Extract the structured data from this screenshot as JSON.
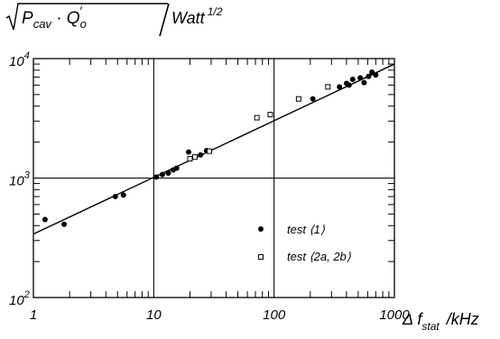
{
  "chart_data": {
    "type": "scatter",
    "x_scale": "log",
    "y_scale": "log",
    "xlim": [
      1,
      1000
    ],
    "ylim": [
      100,
      10000
    ],
    "grid": "major lines at x=10, x=100, y=1000",
    "legend_position": "lower-right",
    "ylabel": {
      "main": "P",
      "main_sub": "cav",
      "middle": " · Q",
      "middle_sub": "o",
      "middle_prime": "′",
      "unit": "Watt",
      "unit_sup": "1/2"
    },
    "xlabel": {
      "delta": "Δ f",
      "sub": "stat",
      "unit": "/kHz"
    },
    "x_ticks": [
      {
        "value": 1,
        "label": "1"
      },
      {
        "value": 10,
        "label": "10"
      },
      {
        "value": 100,
        "label": "100"
      },
      {
        "value": 1000,
        "label": "1000"
      }
    ],
    "y_ticks": [
      {
        "value": 100,
        "base": "10",
        "exp": "2"
      },
      {
        "value": 1000,
        "base": "10",
        "exp": "3"
      },
      {
        "value": 10000,
        "base": "10",
        "exp": "4"
      }
    ],
    "series": [
      {
        "name": "test ⟨1⟩",
        "marker": "filled-circle",
        "points": [
          [
            1.25,
            450
          ],
          [
            1.8,
            410
          ],
          [
            4.8,
            700
          ],
          [
            5.6,
            720
          ],
          [
            10.5,
            1020
          ],
          [
            11.8,
            1070
          ],
          [
            13.2,
            1100
          ],
          [
            14.5,
            1170
          ],
          [
            15.5,
            1210
          ],
          [
            19.5,
            1650
          ],
          [
            24.5,
            1560
          ],
          [
            27.5,
            1700
          ],
          [
            210,
            4600
          ],
          [
            350,
            5800
          ],
          [
            400,
            6200
          ],
          [
            420,
            6000
          ],
          [
            450,
            6700
          ],
          [
            520,
            6900
          ],
          [
            560,
            6300
          ],
          [
            610,
            7100
          ],
          [
            650,
            7700
          ],
          [
            700,
            7300
          ]
        ]
      },
      {
        "name": "test ⟨2a, 2b⟩",
        "marker": "open-square",
        "points": [
          [
            20,
            1450
          ],
          [
            22,
            1500
          ],
          [
            29,
            1680
          ],
          [
            72,
            3200
          ],
          [
            93,
            3400
          ],
          [
            160,
            4600
          ],
          [
            280,
            5800
          ]
        ]
      }
    ],
    "fit_line": {
      "from": [
        1,
        340
      ],
      "to": [
        1000,
        9000
      ]
    }
  }
}
